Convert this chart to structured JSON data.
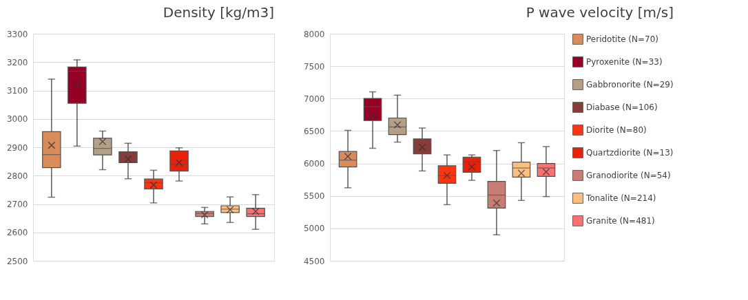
{
  "chart_data": [
    {
      "type": "box",
      "title": "Density [kg/m3]",
      "categories": [
        null
      ],
      "ylim": [
        2500,
        3300
      ],
      "yticks": [
        2500,
        2600,
        2700,
        2800,
        2900,
        3000,
        3100,
        3200,
        3300
      ],
      "grid": "y",
      "legend": false,
      "tick_labels": "y",
      "series": [
        {
          "color": "#d98b5a",
          "boxes": [
            {
              "low": 2724,
              "q1": 2828,
              "median": 2874,
              "q3": 2955,
              "high": 3140,
              "mean": 2907
            }
          ]
        },
        {
          "color": "#960026",
          "boxes": [
            {
              "low": 2904,
              "q1": 3055,
              "median": 3168,
              "q3": 3183,
              "high": 3208,
              "mean": 3121
            }
          ]
        },
        {
          "color": "#b49f87",
          "boxes": [
            {
              "low": 2821,
              "q1": 2873,
              "median": 2896,
              "q3": 2932,
              "high": 2957,
              "mean": 2920
            }
          ]
        },
        {
          "color": "#893b37",
          "boxes": [
            {
              "low": 2789,
              "q1": 2846,
              "median": 2868,
              "q3": 2884,
              "high": 2914,
              "mean": 2858
            }
          ]
        },
        {
          "color": "#ff3512",
          "boxes": [
            {
              "low": 2704,
              "q1": 2753,
              "median": 2775,
              "q3": 2788,
              "high": 2819,
              "mean": 2767
            }
          ]
        },
        {
          "color": "#e8210b",
          "boxes": [
            {
              "low": 2781,
              "q1": 2816,
              "median": 2840,
              "q3": 2887,
              "high": 2898,
              "mean": 2846
            }
          ]
        },
        {
          "color": "#c97d72",
          "boxes": [
            {
              "low": 2630,
              "q1": 2656,
              "median": 2667,
              "q3": 2674,
              "high": 2688,
              "mean": 2662
            }
          ]
        },
        {
          "color": "#ffbf7f",
          "boxes": [
            {
              "low": 2635,
              "q1": 2670,
              "median": 2682,
              "q3": 2694,
              "high": 2725,
              "mean": 2680
            }
          ]
        },
        {
          "color": "#ff7070",
          "boxes": [
            {
              "low": 2611,
              "q1": 2656,
              "median": 2666,
              "q3": 2685,
              "high": 2733,
              "mean": 2674
            }
          ]
        }
      ]
    },
    {
      "type": "box",
      "title": "P wave velocity [m/s]",
      "categories": [
        null
      ],
      "ylim": [
        4500,
        8000
      ],
      "yticks": [
        4500,
        5000,
        5500,
        6000,
        6500,
        7000,
        7500,
        8000
      ],
      "grid": "y",
      "legend": "right",
      "tick_labels": "y",
      "series": [
        {
          "name": "Peridotite (N=70)",
          "color": "#d98b5a",
          "boxes": [
            {
              "low": 5625,
              "q1": 5947,
              "median": 6053,
              "q3": 6184,
              "high": 6510,
              "mean": 6109
            }
          ]
        },
        {
          "name": "Pyroxenite (N=33)",
          "color": "#960026",
          "boxes": [
            {
              "low": 6234,
              "q1": 6661,
              "median": 6875,
              "q3": 7003,
              "high": 7105,
              "mean": 6743
            }
          ]
        },
        {
          "name": "Gabbronorite (N=29)",
          "color": "#b49f87",
          "boxes": [
            {
              "low": 6329,
              "q1": 6444,
              "median": 6563,
              "q3": 6701,
              "high": 7053,
              "mean": 6595
            }
          ]
        },
        {
          "name": "Diabase (N=106)",
          "color": "#893b37",
          "boxes": [
            {
              "low": 5885,
              "q1": 6148,
              "median": 6276,
              "q3": 6378,
              "high": 6546,
              "mean": 6250
            }
          ]
        },
        {
          "name": "Diorite (N=80)",
          "color": "#ff3512",
          "boxes": [
            {
              "low": 5365,
              "q1": 5694,
              "median": 5813,
              "q3": 5964,
              "high": 6132,
              "mean": 5816
            }
          ]
        },
        {
          "name": "Quartzdiorite (N=13)",
          "color": "#e8210b",
          "boxes": [
            {
              "low": 5740,
              "q1": 5865,
              "median": 6023,
              "q3": 6099,
              "high": 6132,
              "mean": 5947
            }
          ]
        },
        {
          "name": "Granodiorite (N=54)",
          "color": "#c97d72",
          "boxes": [
            {
              "low": 4900,
              "q1": 5313,
              "median": 5513,
              "q3": 5724,
              "high": 6200,
              "mean": 5390
            }
          ]
        },
        {
          "name": "Tonalite (N=214)",
          "color": "#ffbf7f",
          "boxes": [
            {
              "low": 5430,
              "q1": 5790,
              "median": 5930,
              "q3": 6020,
              "high": 6320,
              "mean": 5850
            }
          ]
        },
        {
          "name": "Granite (N=481)",
          "color": "#ff7070",
          "boxes": [
            {
              "low": 5490,
              "q1": 5800,
              "median": 5930,
              "q3": 6000,
              "high": 6260,
              "mean": 5870
            }
          ]
        }
      ]
    }
  ]
}
